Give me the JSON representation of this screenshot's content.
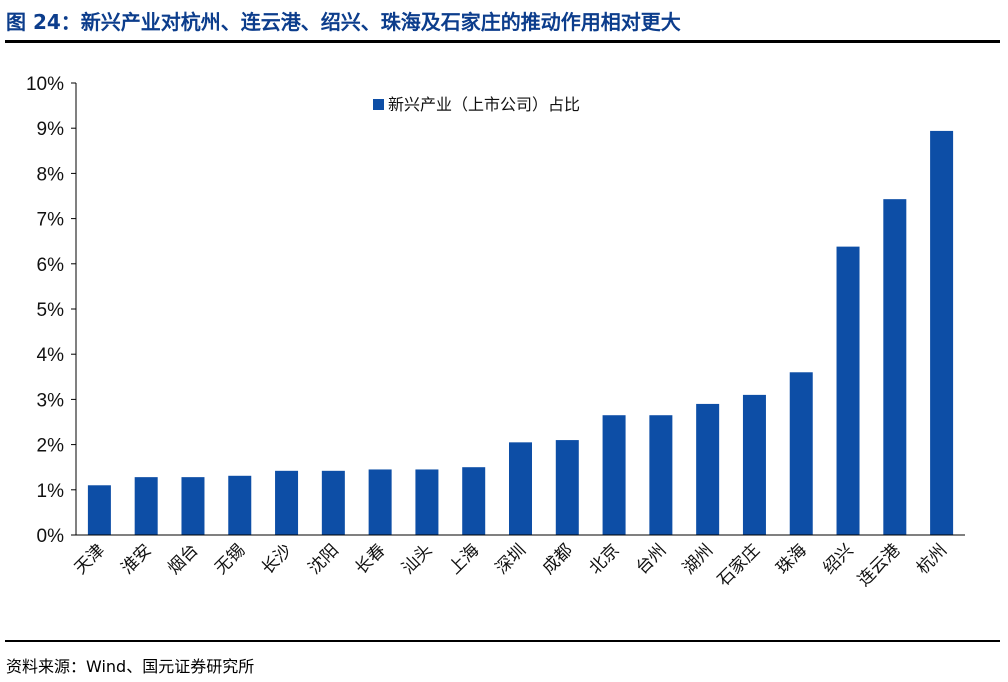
{
  "figure": {
    "title": "图 24：新兴产业对杭州、连云港、绍兴、珠海及石家庄的推动作用相对更大",
    "source": "资料来源：Wind、国元证券研究所"
  },
  "colors": {
    "bar": "#0d4ea6",
    "title": "#0c3d8c",
    "axis": "#000000"
  },
  "chart_data": {
    "type": "bar",
    "categories": [
      "天津",
      "淮安",
      "烟台",
      "无锡",
      "长沙",
      "沈阳",
      "长春",
      "汕头",
      "上海",
      "深圳",
      "成都",
      "北京",
      "台州",
      "湖州",
      "石家庄",
      "珠海",
      "绍兴",
      "连云港",
      "杭州"
    ],
    "series": [
      {
        "name": "新兴产业（上市公司）占比",
        "values": [
          1.1,
          1.28,
          1.28,
          1.31,
          1.42,
          1.42,
          1.45,
          1.45,
          1.5,
          2.05,
          2.1,
          2.65,
          2.65,
          2.9,
          3.1,
          3.6,
          6.38,
          7.43,
          8.94
        ]
      }
    ],
    "ylim": [
      0,
      10
    ],
    "yticks": [
      "0%",
      "1%",
      "2%",
      "3%",
      "4%",
      "5%",
      "6%",
      "7%",
      "8%",
      "9%",
      "10%"
    ],
    "legend_position": "top-center",
    "grid": false
  }
}
